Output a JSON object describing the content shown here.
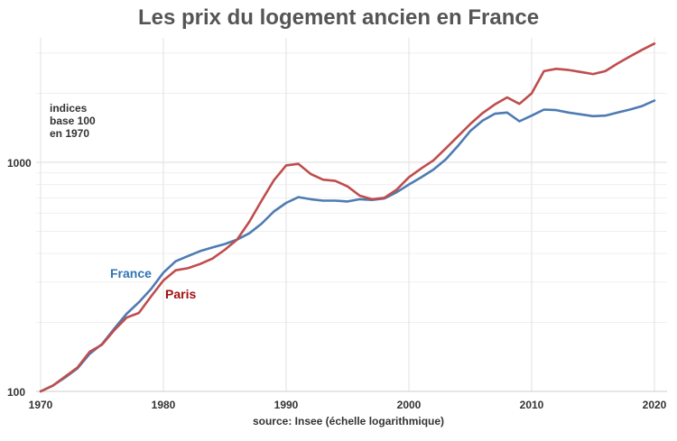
{
  "chart_data": {
    "type": "line",
    "title": "Les prix du logement ancien en France",
    "note": [
      "indices",
      "base 100",
      "en 1970"
    ],
    "source": "source: Insee (échelle logarithmique)",
    "y_scale": "log",
    "xlim": [
      1970,
      2021
    ],
    "ylim": [
      100,
      3500
    ],
    "x_ticks": [
      1970,
      1980,
      1990,
      2000,
      2010,
      2020
    ],
    "x_tick_labels": [
      "1970",
      "1980",
      "1990",
      "2000",
      "2010",
      "2020"
    ],
    "y_ticks": [
      100,
      1000
    ],
    "y_tick_labels": [
      "100",
      "1000"
    ],
    "grid": true,
    "x": [
      1970,
      1971,
      1972,
      1973,
      1974,
      1975,
      1976,
      1977,
      1978,
      1979,
      1980,
      1981,
      1982,
      1983,
      1984,
      1985,
      1986,
      1987,
      1988,
      1989,
      1990,
      1991,
      1992,
      1993,
      1994,
      1995,
      1996,
      1997,
      1998,
      1999,
      2000,
      2001,
      2002,
      2003,
      2004,
      2005,
      2006,
      2007,
      2008,
      2009,
      2010,
      2011,
      2012,
      2013,
      2014,
      2015,
      2016,
      2017,
      2018,
      2019,
      2020
    ],
    "series": [
      {
        "name": "France",
        "color": "#4e7bb2",
        "label_color": "#2e74b5",
        "values": [
          100,
          106,
          115,
          126,
          146,
          161,
          188,
          218,
          245,
          280,
          330,
          370,
          390,
          410,
          425,
          440,
          460,
          490,
          540,
          610,
          665,
          705,
          690,
          680,
          680,
          675,
          690,
          685,
          695,
          740,
          800,
          860,
          930,
          1030,
          1180,
          1370,
          1520,
          1630,
          1650,
          1510,
          1600,
          1700,
          1690,
          1650,
          1620,
          1590,
          1600,
          1650,
          1700,
          1760,
          1860
        ]
      },
      {
        "name": "Paris",
        "color": "#bf4d4d",
        "label_color": "#a30f0f",
        "values": [
          100,
          106,
          116,
          127,
          149,
          160,
          185,
          210,
          220,
          260,
          305,
          338,
          345,
          360,
          380,
          415,
          460,
          550,
          680,
          835,
          970,
          985,
          890,
          840,
          830,
          785,
          715,
          690,
          700,
          760,
          860,
          940,
          1020,
          1150,
          1300,
          1470,
          1640,
          1790,
          1920,
          1800,
          2000,
          2500,
          2560,
          2530,
          2480,
          2430,
          2500,
          2700,
          2900,
          3100,
          3300
        ]
      }
    ]
  }
}
